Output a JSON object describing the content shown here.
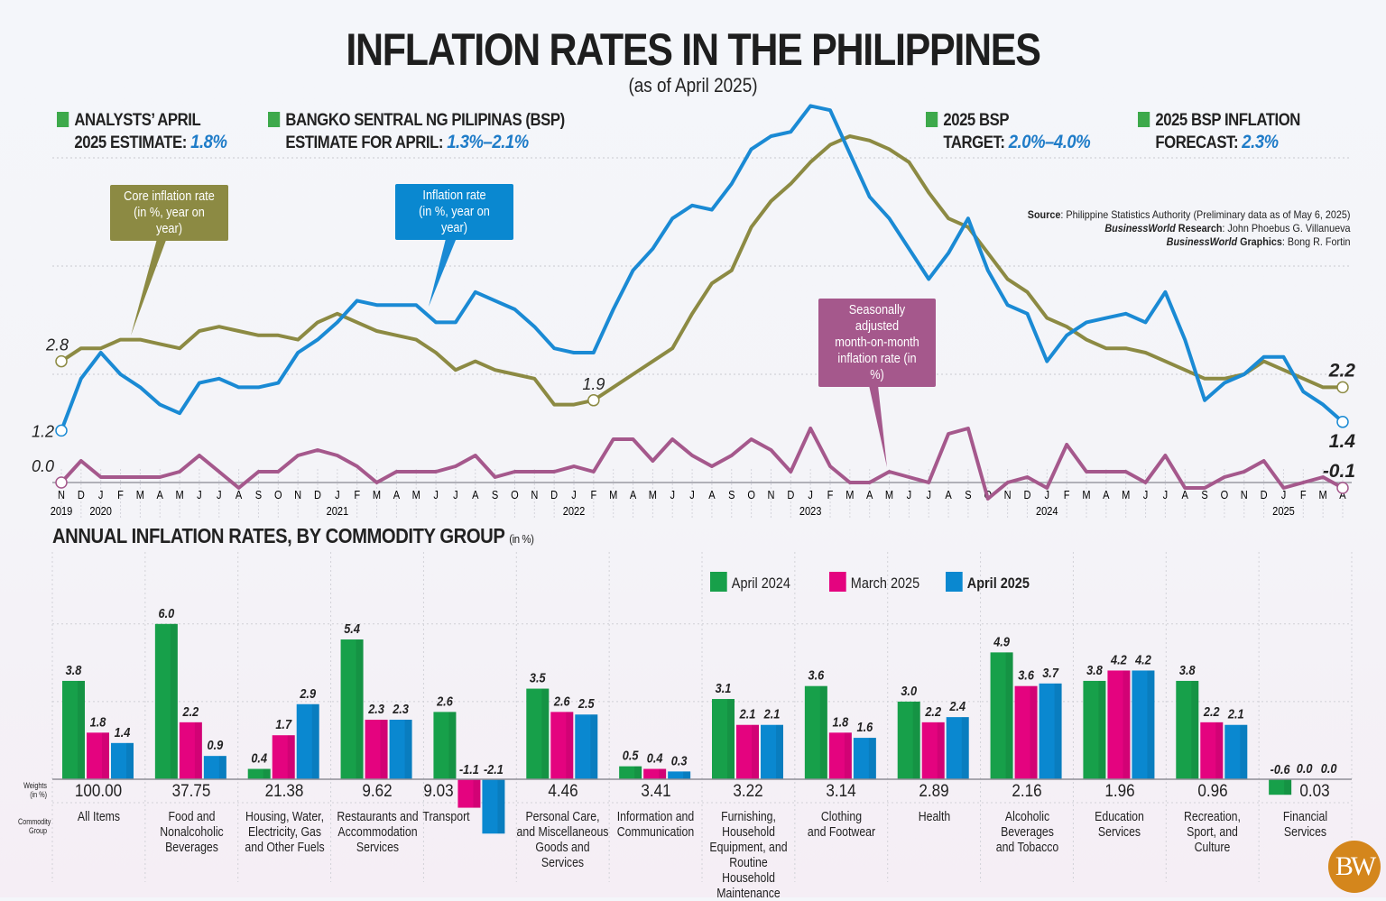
{
  "header": {
    "title": "INFLATION RATES IN THE PHILIPPINES",
    "subtitle": "(as of April 2025)"
  },
  "key_figures": [
    {
      "line1": "ANALYSTS’ APRIL",
      "line2": "2025 ESTIMATE:",
      "value": "1.8%"
    },
    {
      "line1": "BANGKO SENTRAL NG PILIPINAS (BSP)",
      "line2": "ESTIMATE FOR APRIL:",
      "value": "1.3%–2.1%"
    },
    {
      "line1": "2025 BSP",
      "line2": "TARGET:",
      "value": "2.0%–4.0%"
    },
    {
      "line1": "2025 BSP INFLATION",
      "line2": "FORECAST:",
      "value": "2.3%"
    }
  ],
  "source": {
    "source_label": "Source",
    "source_text": ": Philippine Statistics Authority (Preliminary data as of May 6, 2025)",
    "research_brand": "BusinessWorld",
    "research_label": " Research",
    "research_name": ": John Phoebus G. Villanueva",
    "graphics_brand": "BusinessWorld",
    "graphics_label": " Graphics",
    "graphics_name": ": Bong R. Fortin"
  },
  "logo": "BW",
  "colors": {
    "core": "#8c8a43",
    "inflation": "#1a8ad4",
    "mom": "#a5588c",
    "april_2024": "#17a04a",
    "march_2025": "#e4037f",
    "april_2025": "#0a88d0",
    "key_square": "#3da94b",
    "key_value": "#1f7cc8"
  },
  "chart_data": [
    {
      "type": "line",
      "title": "",
      "x": [
        "2019-11",
        "2019-12",
        "2020-01",
        "2020-02",
        "2020-03",
        "2020-04",
        "2020-05",
        "2020-06",
        "2020-07",
        "2020-08",
        "2020-09",
        "2020-10",
        "2020-11",
        "2020-12",
        "2021-01",
        "2021-02",
        "2021-03",
        "2021-04",
        "2021-05",
        "2021-06",
        "2021-07",
        "2021-08",
        "2021-09",
        "2021-10",
        "2021-11",
        "2021-12",
        "2022-01",
        "2022-02",
        "2022-03",
        "2022-04",
        "2022-05",
        "2022-06",
        "2022-07",
        "2022-08",
        "2022-09",
        "2022-10",
        "2022-11",
        "2022-12",
        "2023-01",
        "2023-02",
        "2023-03",
        "2023-04",
        "2023-05",
        "2023-06",
        "2023-07",
        "2023-08",
        "2023-09",
        "2023-10",
        "2023-11",
        "2023-12",
        "2024-01",
        "2024-02",
        "2024-03",
        "2024-04",
        "2024-05",
        "2024-06",
        "2024-07",
        "2024-08",
        "2024-09",
        "2024-10",
        "2024-11",
        "2024-12",
        "2025-01",
        "2025-02",
        "2025-03",
        "2025-04"
      ],
      "month_letters": [
        "N",
        "D",
        "J",
        "F",
        "M",
        "A",
        "M",
        "J",
        "J",
        "A",
        "S",
        "O",
        "N",
        "D"
      ],
      "series": [
        {
          "name": "Core inflation rate (in %, year on year)",
          "key": "core",
          "values": [
            2.8,
            3.1,
            3.1,
            3.3,
            3.3,
            3.2,
            3.1,
            3.5,
            3.6,
            3.5,
            3.4,
            3.4,
            3.3,
            3.7,
            3.9,
            3.7,
            3.5,
            3.4,
            3.3,
            3.0,
            2.6,
            2.8,
            2.6,
            2.5,
            2.4,
            1.8,
            1.8,
            1.9,
            2.2,
            2.5,
            2.8,
            3.1,
            3.9,
            4.6,
            4.9,
            5.9,
            6.5,
            6.9,
            7.4,
            7.8,
            8.0,
            7.9,
            7.7,
            7.4,
            6.7,
            6.1,
            5.9,
            5.3,
            4.7,
            4.4,
            3.8,
            3.6,
            3.3,
            3.1,
            3.1,
            3.0,
            2.8,
            2.6,
            2.4,
            2.4,
            2.5,
            2.8,
            2.6,
            2.4,
            2.2,
            2.2
          ]
        },
        {
          "name": "Inflation rate (in %, year on year)",
          "key": "inflation",
          "values": [
            1.2,
            2.4,
            3.0,
            2.5,
            2.2,
            1.8,
            1.6,
            2.3,
            2.4,
            2.2,
            2.2,
            2.3,
            3.0,
            3.3,
            3.7,
            4.2,
            4.1,
            4.1,
            4.1,
            3.7,
            3.7,
            4.4,
            4.2,
            4.0,
            3.6,
            3.1,
            3.0,
            3.0,
            4.0,
            4.9,
            5.4,
            6.1,
            6.4,
            6.3,
            6.9,
            7.7,
            8.0,
            8.1,
            8.7,
            8.6,
            7.6,
            6.6,
            6.1,
            5.4,
            4.7,
            5.3,
            6.1,
            4.9,
            4.1,
            3.9,
            2.8,
            3.4,
            3.7,
            3.8,
            3.9,
            3.7,
            4.4,
            3.3,
            1.9,
            2.3,
            2.5,
            2.9,
            2.9,
            2.1,
            1.8,
            1.4
          ]
        },
        {
          "name": "Seasonally adjusted month-on-month inflation rate (in %)",
          "key": "mom",
          "values": [
            0.0,
            0.4,
            0.1,
            0.1,
            0.1,
            0.1,
            0.2,
            0.5,
            0.2,
            -0.1,
            0.2,
            0.2,
            0.5,
            0.6,
            0.5,
            0.3,
            0.0,
            0.2,
            0.2,
            0.2,
            0.3,
            0.5,
            0.1,
            0.2,
            0.2,
            0.2,
            0.3,
            0.2,
            0.8,
            0.8,
            0.4,
            0.8,
            0.5,
            0.3,
            0.5,
            0.8,
            0.6,
            0.2,
            1.0,
            0.3,
            0.0,
            0.0,
            0.2,
            0.1,
            0.0,
            0.9,
            1.0,
            -0.3,
            0.0,
            0.1,
            -0.1,
            0.7,
            0.2,
            0.2,
            0.2,
            0.0,
            0.5,
            -0.1,
            -0.1,
            0.1,
            0.2,
            0.4,
            -0.1,
            0.0,
            0.1,
            -0.1
          ]
        }
      ],
      "callouts": {
        "core": [
          "Core inflation rate",
          "(in %, year on year)"
        ],
        "inflation": [
          "Inflation rate",
          "(in %, year on year)"
        ],
        "mom": [
          "Seasonally adjusted",
          "month-on-month",
          "inflation rate (in %)"
        ]
      },
      "annotations": [
        {
          "series": "core",
          "x": "2019-11",
          "label": "2.8"
        },
        {
          "series": "inflation",
          "x": "2019-11",
          "label": "1.2"
        },
        {
          "series": "mom",
          "x": "2019-11",
          "label": "0.0"
        },
        {
          "series": "core",
          "x": "2022-02",
          "label": "1.9"
        },
        {
          "series": "core",
          "x": "2025-04",
          "label": "2.2"
        },
        {
          "series": "inflation",
          "x": "2025-04",
          "label": "1.4"
        },
        {
          "series": "mom",
          "x": "2025-04",
          "label": "-0.1"
        }
      ],
      "grid": true
    },
    {
      "type": "bar",
      "title": "ANNUAL INFLATION RATES, BY COMMODITY GROUP",
      "unit": "(in %)",
      "ylim": [
        -2.5,
        7.5
      ],
      "grid": true,
      "legend_position": "top-right",
      "weights_label": [
        "Weights",
        "(in %)"
      ],
      "group_label": [
        "Commodity",
        "Group"
      ],
      "series_names": [
        "April 2024",
        "March 2025",
        "April 2025"
      ],
      "categories": [
        {
          "name": [
            "All Items"
          ],
          "weight": "100.00",
          "values": [
            3.8,
            1.8,
            1.4
          ],
          "labels": [
            "3.8",
            "1.8",
            "1.4"
          ]
        },
        {
          "name": [
            "Food and",
            "Nonalcoholic",
            "Beverages"
          ],
          "weight": "37.75",
          "values": [
            6.0,
            2.2,
            0.9
          ],
          "labels": [
            "6.0",
            "2.2",
            "0.9"
          ]
        },
        {
          "name": [
            "Housing, Water,",
            "Electricity, Gas",
            "and Other Fuels"
          ],
          "weight": "21.38",
          "values": [
            0.4,
            1.7,
            2.9
          ],
          "labels": [
            "0.4",
            "1.7",
            "2.9"
          ]
        },
        {
          "name": [
            "Restaurants and",
            "Accommodation",
            "Services"
          ],
          "weight": "9.62",
          "values": [
            5.4,
            2.3,
            2.3
          ],
          "labels": [
            "5.4",
            "2.3",
            "2.3"
          ]
        },
        {
          "name": [
            "Transport"
          ],
          "weight": "9.03",
          "values": [
            2.6,
            -1.1,
            -2.1
          ],
          "labels": [
            "2.6",
            "-1.1",
            "-2.1"
          ]
        },
        {
          "name": [
            "Personal Care,",
            "and Miscellaneous",
            "Goods and",
            "Services"
          ],
          "weight": "4.46",
          "values": [
            3.5,
            2.6,
            2.5
          ],
          "labels": [
            "3.5",
            "2.6",
            "2.5"
          ]
        },
        {
          "name": [
            "Information and",
            "Communication"
          ],
          "weight": "3.41",
          "values": [
            0.5,
            0.4,
            0.3
          ],
          "labels": [
            "0.5",
            "0.4",
            "0.3"
          ]
        },
        {
          "name": [
            "Furnishing,",
            "Household",
            "Equipment, and",
            "Routine Household",
            "Maintenance"
          ],
          "weight": "3.22",
          "values": [
            3.1,
            2.1,
            2.1
          ],
          "labels": [
            "3.1",
            "2.1",
            "2.1"
          ]
        },
        {
          "name": [
            "Clothing",
            "and Footwear"
          ],
          "weight": "3.14",
          "values": [
            3.6,
            1.8,
            1.6
          ],
          "labels": [
            "3.6",
            "1.8",
            "1.6"
          ]
        },
        {
          "name": [
            "Health"
          ],
          "weight": "2.89",
          "values": [
            3.0,
            2.2,
            2.4
          ],
          "labels": [
            "3.0",
            "2.2",
            "2.4"
          ]
        },
        {
          "name": [
            "Alcoholic",
            "Beverages",
            "and Tobacco"
          ],
          "weight": "2.16",
          "values": [
            4.9,
            3.6,
            3.7
          ],
          "labels": [
            "4.9",
            "3.6",
            "3.7"
          ]
        },
        {
          "name": [
            "Education",
            "Services"
          ],
          "weight": "1.96",
          "values": [
            3.8,
            4.2,
            4.2
          ],
          "labels": [
            "3.8",
            "4.2",
            "4.2"
          ]
        },
        {
          "name": [
            "Recreation,",
            "Sport, and",
            "Culture"
          ],
          "weight": "0.96",
          "values": [
            3.8,
            2.2,
            2.1
          ],
          "labels": [
            "3.8",
            "2.2",
            "2.1"
          ]
        },
        {
          "name": [
            "Financial",
            "Services"
          ],
          "weight": "0.03",
          "values": [
            -0.6,
            0.0,
            0.0
          ],
          "labels": [
            "-0.6",
            "0.0",
            "0.0"
          ]
        }
      ]
    }
  ]
}
